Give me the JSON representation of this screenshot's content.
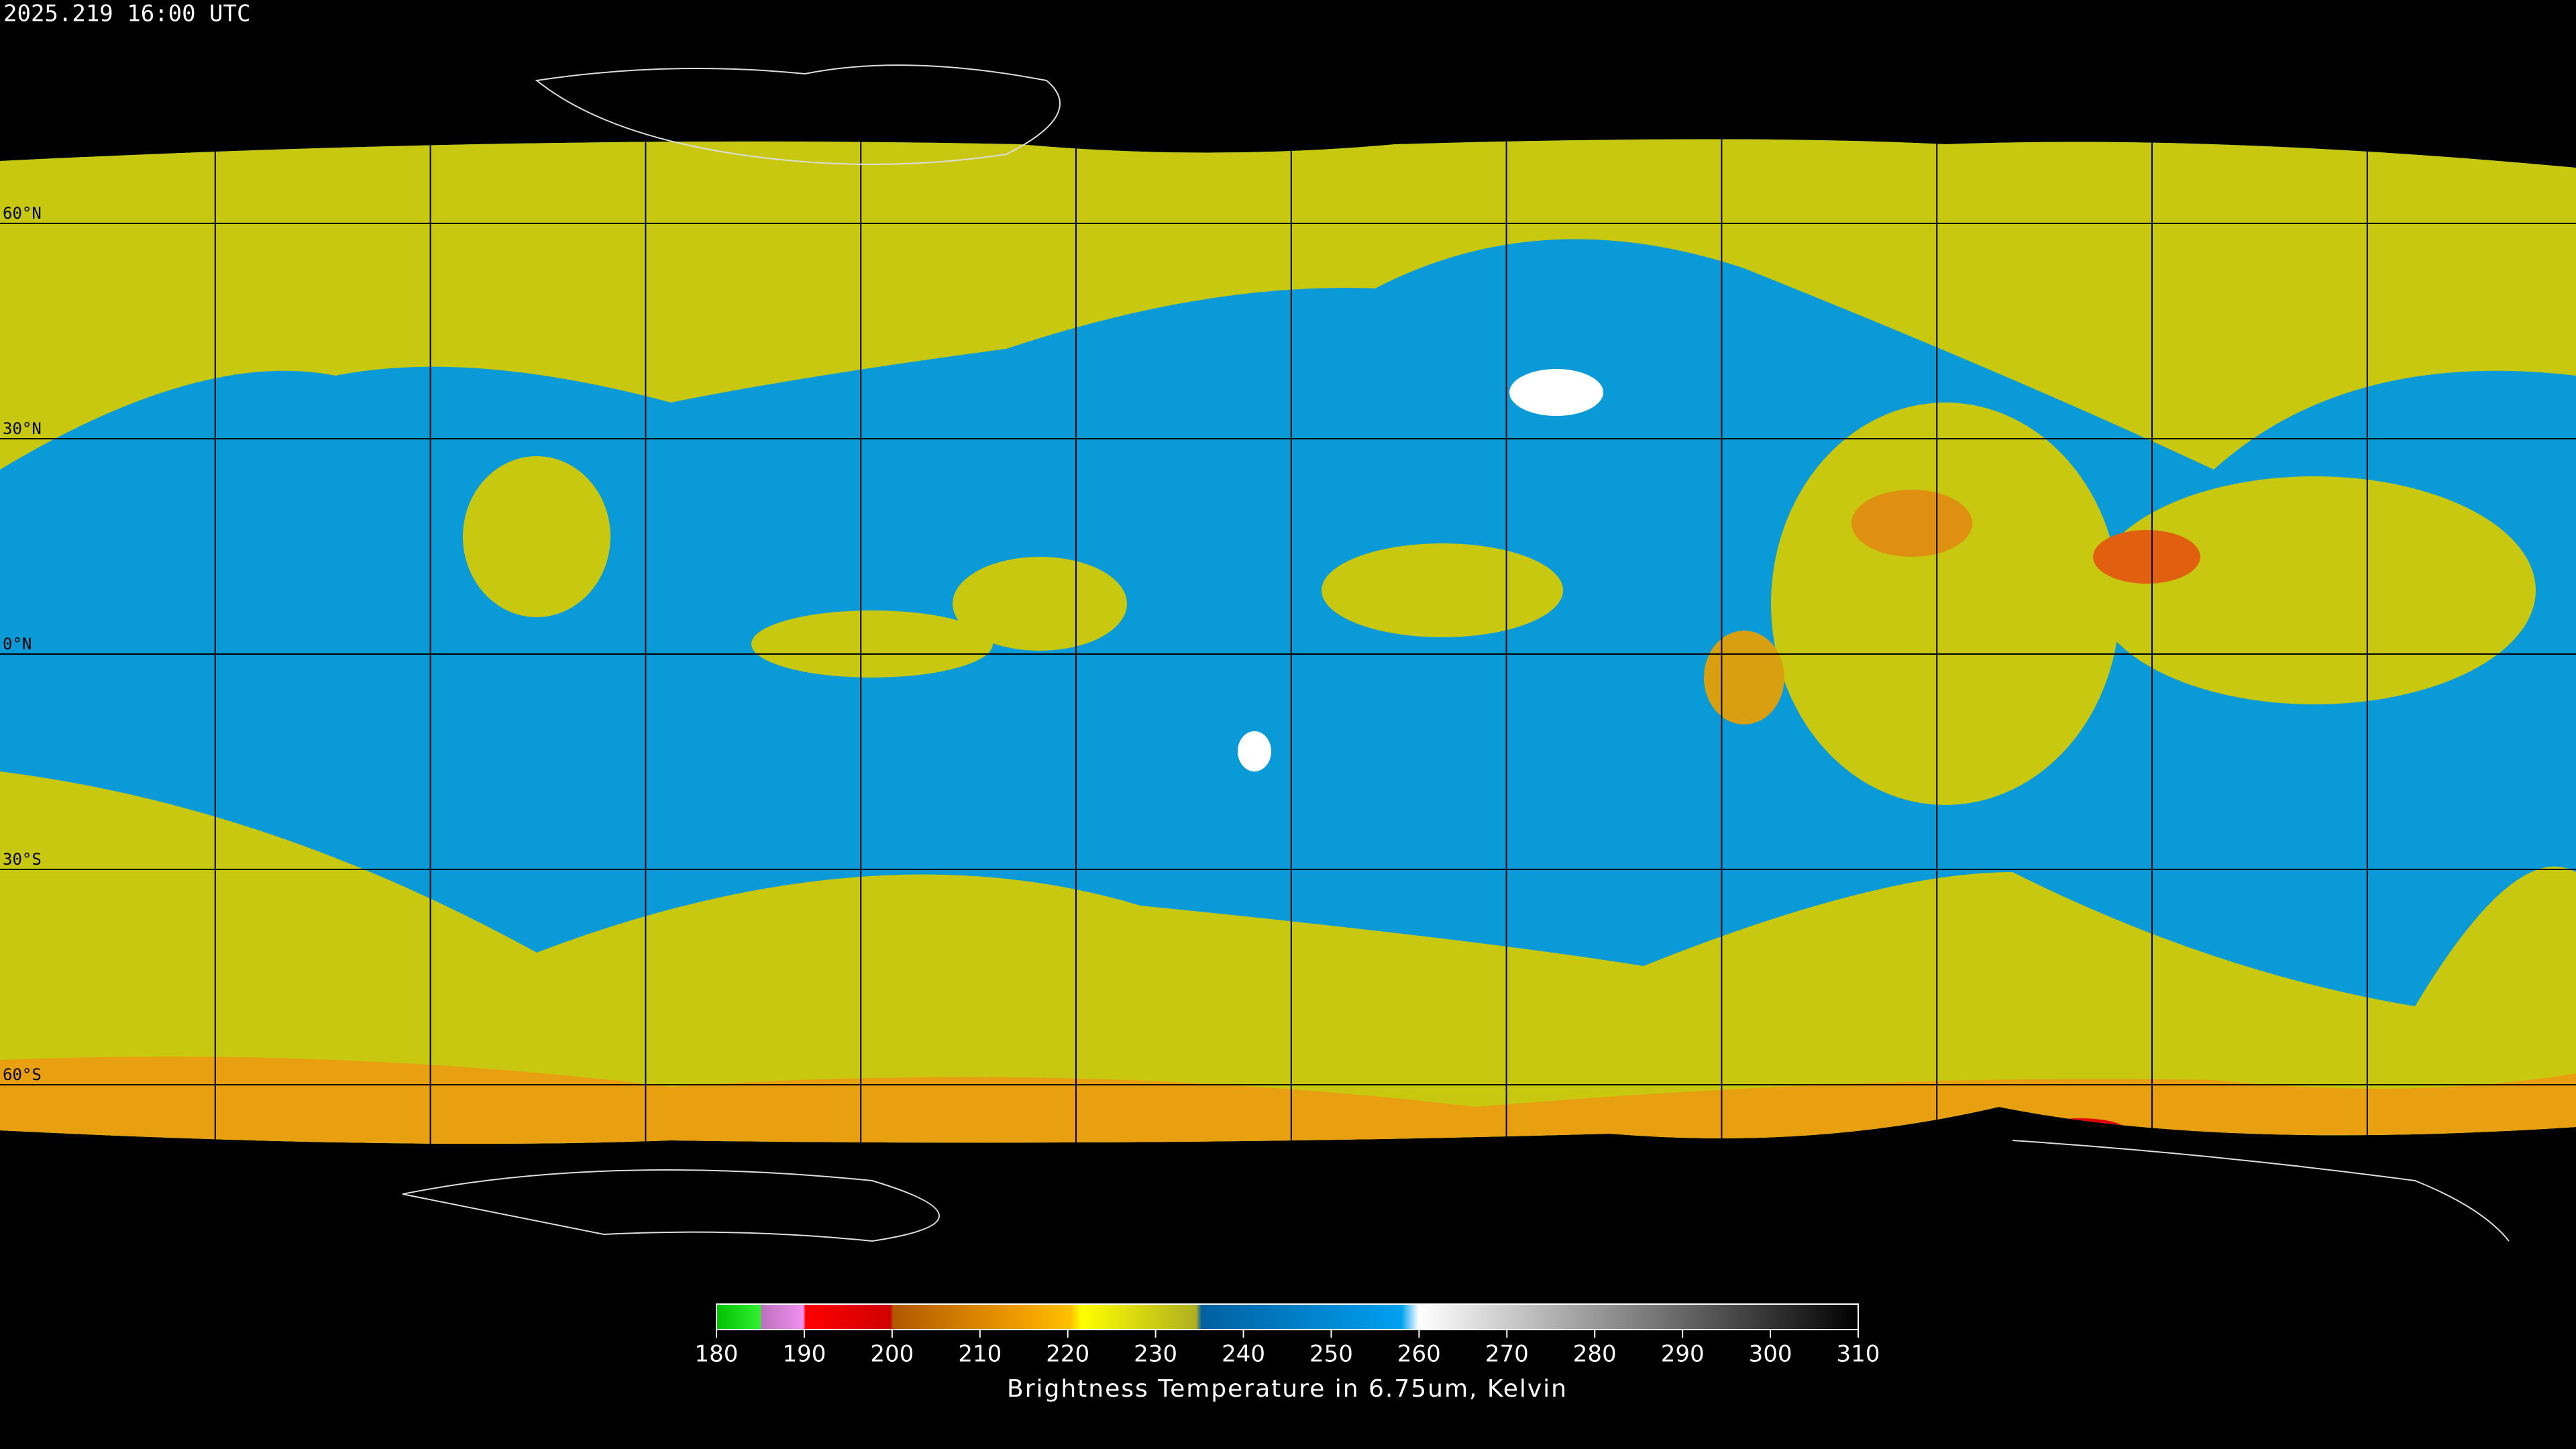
{
  "timestamp": "2025.219 16:00 UTC",
  "grid": {
    "latitude_labels": [
      "60°N",
      "30°N",
      "0°N",
      "30°S",
      "60°S"
    ]
  },
  "colorbar": {
    "lim": [
      180,
      310
    ],
    "ticks": [
      180,
      190,
      200,
      210,
      220,
      230,
      240,
      250,
      260,
      270,
      280,
      290,
      300,
      310
    ],
    "label": "Brightness Temperature in 6.75um, Kelvin"
  }
}
